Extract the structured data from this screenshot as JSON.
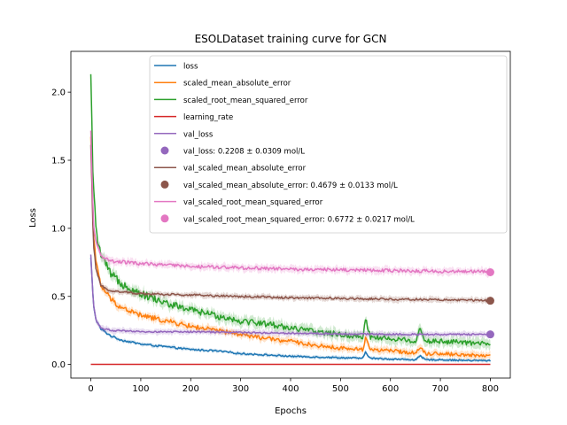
{
  "chart_data": {
    "type": "line",
    "title": "ESOLDataset training curve for GCN",
    "xlabel": "Epochs",
    "ylabel": "Loss",
    "xlim": [
      -40,
      840
    ],
    "ylim": [
      -0.1,
      2.3
    ],
    "xticks": [
      0,
      100,
      200,
      300,
      400,
      500,
      600,
      700,
      800
    ],
    "yticks": [
      0.0,
      0.5,
      1.0,
      1.5,
      2.0
    ],
    "ytick_labels": [
      "0.0",
      "0.5",
      "1.0",
      "1.5",
      "2.0"
    ],
    "grid": false,
    "legend_position": "top-right",
    "series": [
      {
        "name": "loss",
        "color": "#1f77b4",
        "band": 0.012,
        "noise": 0.01,
        "points": [
          [
            0,
            0.78
          ],
          [
            5,
            0.45
          ],
          [
            10,
            0.33
          ],
          [
            20,
            0.26
          ],
          [
            40,
            0.21
          ],
          [
            60,
            0.18
          ],
          [
            100,
            0.15
          ],
          [
            150,
            0.13
          ],
          [
            200,
            0.11
          ],
          [
            250,
            0.1
          ],
          [
            300,
            0.08
          ],
          [
            350,
            0.07
          ],
          [
            400,
            0.06
          ],
          [
            450,
            0.055
          ],
          [
            500,
            0.05
          ],
          [
            545,
            0.045
          ],
          [
            550,
            0.09
          ],
          [
            560,
            0.045
          ],
          [
            600,
            0.04
          ],
          [
            650,
            0.035
          ],
          [
            660,
            0.06
          ],
          [
            670,
            0.035
          ],
          [
            700,
            0.035
          ],
          [
            750,
            0.03
          ],
          [
            800,
            0.028
          ]
        ]
      },
      {
        "name": "scaled_mean_absolute_error",
        "color": "#ff7f0e",
        "band": 0.025,
        "noise": 0.022,
        "points": [
          [
            0,
            1.65
          ],
          [
            5,
            1.0
          ],
          [
            10,
            0.75
          ],
          [
            20,
            0.58
          ],
          [
            40,
            0.48
          ],
          [
            60,
            0.42
          ],
          [
            100,
            0.36
          ],
          [
            150,
            0.32
          ],
          [
            200,
            0.28
          ],
          [
            250,
            0.25
          ],
          [
            300,
            0.22
          ],
          [
            350,
            0.19
          ],
          [
            400,
            0.17
          ],
          [
            450,
            0.14
          ],
          [
            500,
            0.12
          ],
          [
            545,
            0.11
          ],
          [
            550,
            0.2
          ],
          [
            560,
            0.11
          ],
          [
            600,
            0.1
          ],
          [
            650,
            0.085
          ],
          [
            660,
            0.13
          ],
          [
            670,
            0.08
          ],
          [
            700,
            0.08
          ],
          [
            750,
            0.07
          ],
          [
            800,
            0.065
          ]
        ]
      },
      {
        "name": "scaled_root_mean_squared_error",
        "color": "#2ca02c",
        "band": 0.035,
        "noise": 0.028,
        "points": [
          [
            0,
            2.1
          ],
          [
            5,
            1.3
          ],
          [
            10,
            1.0
          ],
          [
            20,
            0.8
          ],
          [
            40,
            0.66
          ],
          [
            60,
            0.6
          ],
          [
            100,
            0.52
          ],
          [
            150,
            0.45
          ],
          [
            200,
            0.4
          ],
          [
            250,
            0.36
          ],
          [
            300,
            0.32
          ],
          [
            350,
            0.3
          ],
          [
            400,
            0.27
          ],
          [
            450,
            0.24
          ],
          [
            500,
            0.22
          ],
          [
            545,
            0.2
          ],
          [
            550,
            0.34
          ],
          [
            560,
            0.2
          ],
          [
            600,
            0.19
          ],
          [
            650,
            0.17
          ],
          [
            660,
            0.27
          ],
          [
            670,
            0.17
          ],
          [
            700,
            0.17
          ],
          [
            750,
            0.16
          ],
          [
            800,
            0.15
          ]
        ]
      },
      {
        "name": "learning_rate",
        "color": "#d62728",
        "band": 0,
        "noise": 0,
        "points": [
          [
            0,
            0.001
          ],
          [
            800,
            0.001
          ]
        ]
      },
      {
        "name": "val_loss",
        "color": "#9467bd",
        "band": 0.02,
        "noise": 0.008,
        "points": [
          [
            0,
            0.8
          ],
          [
            5,
            0.45
          ],
          [
            10,
            0.33
          ],
          [
            20,
            0.27
          ],
          [
            40,
            0.25
          ],
          [
            100,
            0.24
          ],
          [
            200,
            0.24
          ],
          [
            300,
            0.235
          ],
          [
            400,
            0.23
          ],
          [
            500,
            0.225
          ],
          [
            600,
            0.222
          ],
          [
            700,
            0.221
          ],
          [
            800,
            0.22
          ]
        ]
      },
      {
        "name": "val_scaled_mean_absolute_error",
        "color": "#8c564b",
        "band": 0.02,
        "noise": 0.008,
        "points": [
          [
            0,
            1.6
          ],
          [
            5,
            0.9
          ],
          [
            10,
            0.7
          ],
          [
            20,
            0.58
          ],
          [
            40,
            0.54
          ],
          [
            100,
            0.52
          ],
          [
            200,
            0.51
          ],
          [
            300,
            0.5
          ],
          [
            400,
            0.49
          ],
          [
            500,
            0.485
          ],
          [
            600,
            0.48
          ],
          [
            700,
            0.475
          ],
          [
            800,
            0.47
          ]
        ]
      },
      {
        "name": "val_scaled_root_mean_squared_error",
        "color": "#e377c2",
        "band": 0.025,
        "noise": 0.01,
        "points": [
          [
            0,
            1.7
          ],
          [
            5,
            1.05
          ],
          [
            10,
            0.9
          ],
          [
            20,
            0.8
          ],
          [
            40,
            0.76
          ],
          [
            100,
            0.74
          ],
          [
            200,
            0.72
          ],
          [
            300,
            0.71
          ],
          [
            400,
            0.7
          ],
          [
            500,
            0.695
          ],
          [
            600,
            0.69
          ],
          [
            700,
            0.685
          ],
          [
            800,
            0.68
          ]
        ]
      }
    ],
    "markers": [
      {
        "label": "val_loss: 0.2208 ± 0.0309 mol/L",
        "x": 800,
        "y": 0.2208,
        "color": "#9467bd"
      },
      {
        "label": "val_scaled_mean_absolute_error: 0.4679 ± 0.0133 mol/L",
        "x": 800,
        "y": 0.4679,
        "color": "#8c564b"
      },
      {
        "label": "val_scaled_root_mean_squared_error: 0.6772 ± 0.0217 mol/L",
        "x": 800,
        "y": 0.6772,
        "color": "#e377c2"
      }
    ],
    "legend_order": [
      {
        "kind": "line",
        "ref": 0
      },
      {
        "kind": "line",
        "ref": 1
      },
      {
        "kind": "line",
        "ref": 2
      },
      {
        "kind": "line",
        "ref": 3
      },
      {
        "kind": "line",
        "ref": 4
      },
      {
        "kind": "marker",
        "ref": 0
      },
      {
        "kind": "line",
        "ref": 5
      },
      {
        "kind": "marker",
        "ref": 1
      },
      {
        "kind": "line",
        "ref": 6
      },
      {
        "kind": "marker",
        "ref": 2
      }
    ]
  }
}
